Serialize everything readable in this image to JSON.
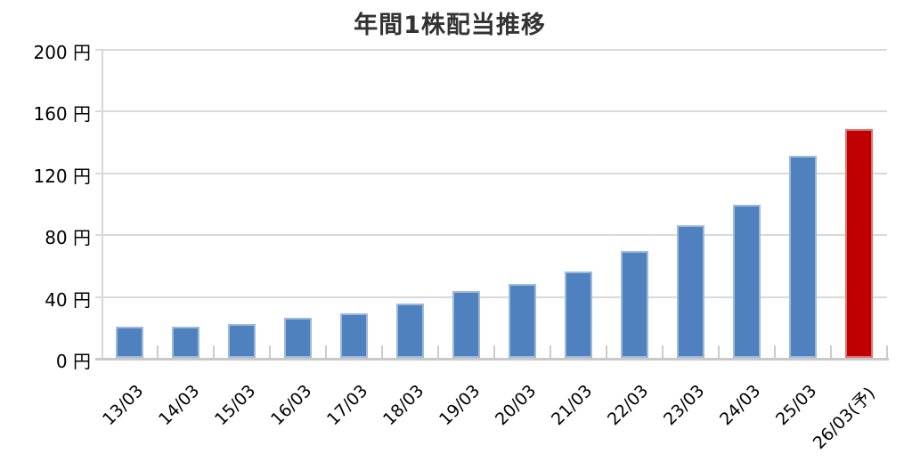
{
  "chart_data": {
    "type": "bar",
    "title": "年間1株配当推移",
    "categories": [
      "13/03",
      "14/03",
      "15/03",
      "16/03",
      "17/03",
      "18/03",
      "19/03",
      "20/03",
      "21/03",
      "22/03",
      "23/03",
      "24/03",
      "25/03",
      "26/03(予)"
    ],
    "values": [
      20,
      20,
      22,
      26,
      29,
      35,
      43,
      48,
      56,
      69,
      86,
      99,
      131,
      148
    ],
    "unit": "円",
    "y_ticks": [
      0,
      40,
      80,
      120,
      160,
      200
    ],
    "y_tick_labels": [
      "0 円",
      "40 円",
      "80 円",
      "120 円",
      "160 円",
      "200 円"
    ],
    "ylim": [
      0,
      200
    ],
    "xlabel": "",
    "ylabel": "",
    "grid": true,
    "legend": "none",
    "bar_color": "#4E81BD",
    "forecast_bar_color": "#C00000",
    "forecast_index": 13,
    "gridline_color": "#D9D9D9",
    "axis_line_color": "#C9C9C9",
    "text_color": "#000000",
    "title_color": "#333333",
    "background_color": "#FFFFFF"
  }
}
